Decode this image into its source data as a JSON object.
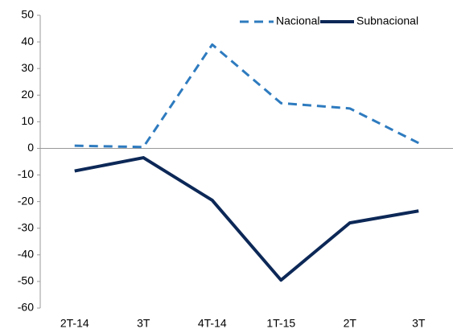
{
  "chart_data": {
    "type": "line",
    "categories": [
      "2T-14",
      "3T",
      "4T-14",
      "1T-15",
      "2T",
      "3T"
    ],
    "series": [
      {
        "name": "Nacional",
        "color": "#2e7bbf",
        "dashed": true,
        "values": [
          1,
          0.5,
          39,
          17,
          15,
          2
        ]
      },
      {
        "name": "Subnacional",
        "color": "#0c2857",
        "dashed": false,
        "values": [
          -8.5,
          -3.5,
          -19.5,
          -49.5,
          -28,
          -23.5
        ]
      }
    ],
    "ylim": [
      -60,
      50
    ],
    "yticks": [
      -60,
      -50,
      -40,
      -30,
      -20,
      -10,
      0,
      10,
      20,
      30,
      40,
      50
    ],
    "grid": false,
    "legend": "top-right"
  }
}
